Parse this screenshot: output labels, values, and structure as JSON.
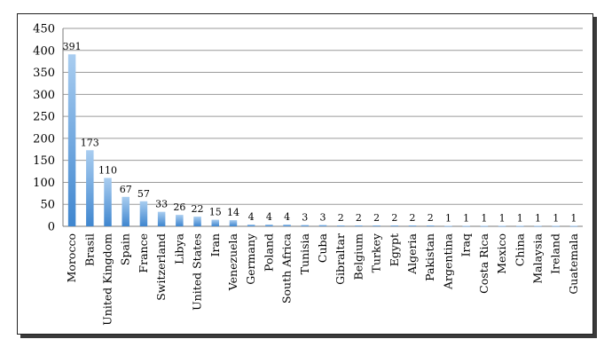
{
  "chart_data": {
    "type": "bar",
    "title": "",
    "xlabel": "",
    "ylabel": "",
    "ylim": [
      0,
      450
    ],
    "yticks": [
      0,
      50,
      100,
      150,
      200,
      250,
      300,
      350,
      400,
      450
    ],
    "grid": true,
    "legend": "none",
    "bar_color": "#5b9bd5",
    "categories": [
      "Morocco",
      "Brasil",
      "United Kingdom",
      "Spain",
      "France",
      "Switzerland",
      "Libya",
      "United States",
      "Iran",
      "Venezuela",
      "Germany",
      "Poland",
      "South Africa",
      "Tunisia",
      "Cuba",
      "Gibraltar",
      "Belgium",
      "Turkey",
      "Egypt",
      "Algeria",
      "Pakistan",
      "Argentina",
      "Iraq",
      "Costa Rica",
      "Mexico",
      "China",
      "Malaysia",
      "Ireland",
      "Guatemala"
    ],
    "values": [
      391,
      173,
      110,
      67,
      57,
      33,
      26,
      22,
      15,
      14,
      4,
      4,
      4,
      3,
      3,
      2,
      2,
      2,
      2,
      2,
      2,
      1,
      1,
      1,
      1,
      1,
      1,
      1,
      1
    ]
  }
}
